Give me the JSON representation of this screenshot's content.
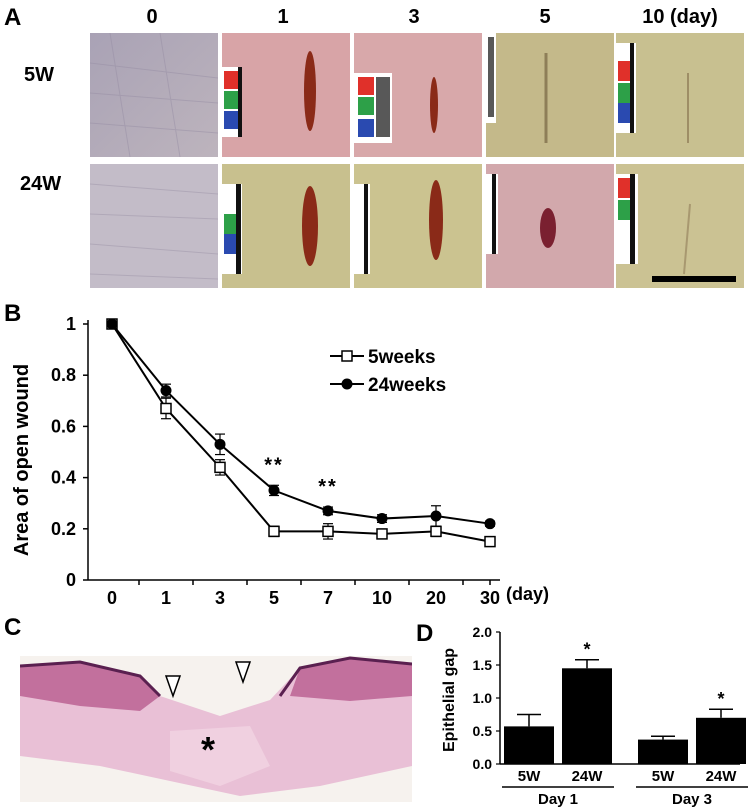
{
  "panels": {
    "a": "A",
    "b": "B",
    "c": "C",
    "d": "D"
  },
  "panel_a": {
    "day_labels": [
      "0",
      "1",
      "3",
      "5",
      "10 (day)"
    ],
    "row_labels": [
      "5W",
      "24W"
    ]
  },
  "colors": {
    "skin_pale": "#b9b2be",
    "skin_pink": "#d9a8a9",
    "skin_yellow": "#c8c08d",
    "wound": "#8a2a18",
    "he_stain": "#c2709d",
    "line": "#000000"
  },
  "chart_data": [
    {
      "type": "line",
      "ylabel": "Area of open wound",
      "xlabel": "(day)",
      "categories": [
        "0",
        "1",
        "3",
        "5",
        "7",
        "10",
        "20",
        "30"
      ],
      "ylim": [
        0,
        1
      ],
      "yticks": [
        "0",
        "0.2",
        "0.4",
        "0.6",
        "0.8",
        "1"
      ],
      "legend_position": "top-right",
      "series": [
        {
          "name": "5weeks",
          "marker": "open-square",
          "values": [
            1.0,
            0.67,
            0.44,
            0.19,
            0.19,
            0.18,
            0.19,
            0.15
          ],
          "errors": [
            0.01,
            0.04,
            0.03,
            0.02,
            0.03,
            0.015,
            0.02,
            0.015
          ]
        },
        {
          "name": "24weeks",
          "marker": "filled-circle",
          "values": [
            1.0,
            0.74,
            0.53,
            0.35,
            0.27,
            0.24,
            0.25,
            0.22
          ],
          "errors": [
            0.01,
            0.025,
            0.04,
            0.02,
            0.015,
            0.015,
            0.04,
            0.01
          ]
        }
      ],
      "annotations": [
        {
          "text": "**",
          "category": "5"
        },
        {
          "text": "**",
          "category": "7"
        }
      ]
    },
    {
      "type": "bar",
      "ylabel": "Epithelial gap",
      "ylim": [
        0,
        2.0
      ],
      "yticks": [
        "0.0",
        "0.5",
        "1.0",
        "1.5",
        "2.0"
      ],
      "groups": [
        {
          "label": "Day 1",
          "categories": [
            "5W",
            "24W"
          ],
          "values": [
            0.57,
            1.45
          ],
          "errors": [
            0.18,
            0.13
          ],
          "significance": [
            "",
            "*"
          ]
        },
        {
          "label": "Day 3",
          "categories": [
            "5W",
            "24W"
          ],
          "values": [
            0.37,
            0.7
          ],
          "errors": [
            0.05,
            0.13
          ],
          "significance": [
            "",
            "*"
          ]
        }
      ]
    }
  ]
}
